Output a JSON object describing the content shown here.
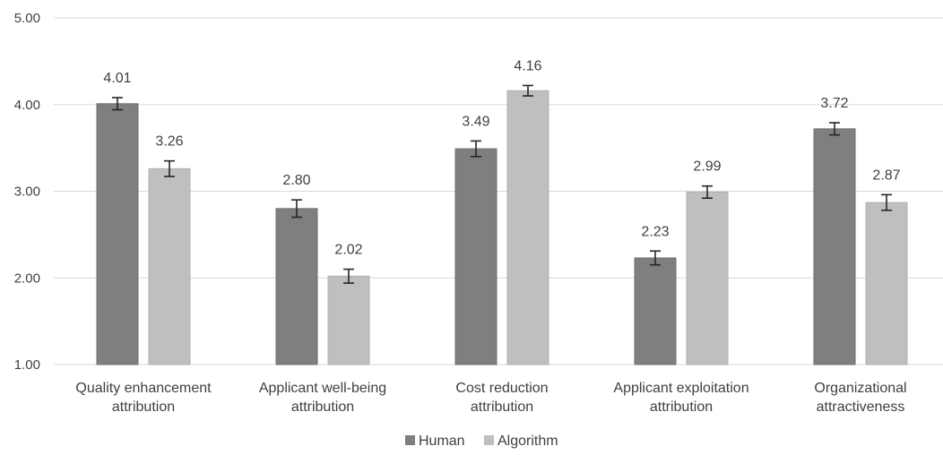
{
  "chart_data": {
    "type": "bar",
    "categories": [
      [
        "Quality enhancement",
        "attribution"
      ],
      [
        "Applicant well-being",
        "attribution"
      ],
      [
        "Cost reduction",
        "attribution"
      ],
      [
        "Applicant exploitation",
        "attribution"
      ],
      [
        "Organizational",
        "attractiveness"
      ]
    ],
    "series": [
      {
        "name": "Human",
        "color": "#7f7f7f",
        "values": [
          4.01,
          2.8,
          3.49,
          2.23,
          3.72
        ],
        "labels": [
          "4.01",
          "2.80",
          "3.49",
          "2.23",
          "3.72"
        ],
        "error": [
          0.07,
          0.1,
          0.09,
          0.08,
          0.07
        ]
      },
      {
        "name": "Algorithm",
        "color": "#bfbfbf",
        "values": [
          3.26,
          2.02,
          4.16,
          2.99,
          2.87
        ],
        "labels": [
          "3.26",
          "2.02",
          "4.16",
          "2.99",
          "2.87"
        ],
        "error": [
          0.09,
          0.08,
          0.06,
          0.07,
          0.09
        ]
      }
    ],
    "ylim": [
      1,
      5
    ],
    "yticks": [
      "1.00",
      "2.00",
      "3.00",
      "4.00",
      "5.00"
    ],
    "grid": true,
    "legend": "bottom",
    "error_bars": true
  }
}
